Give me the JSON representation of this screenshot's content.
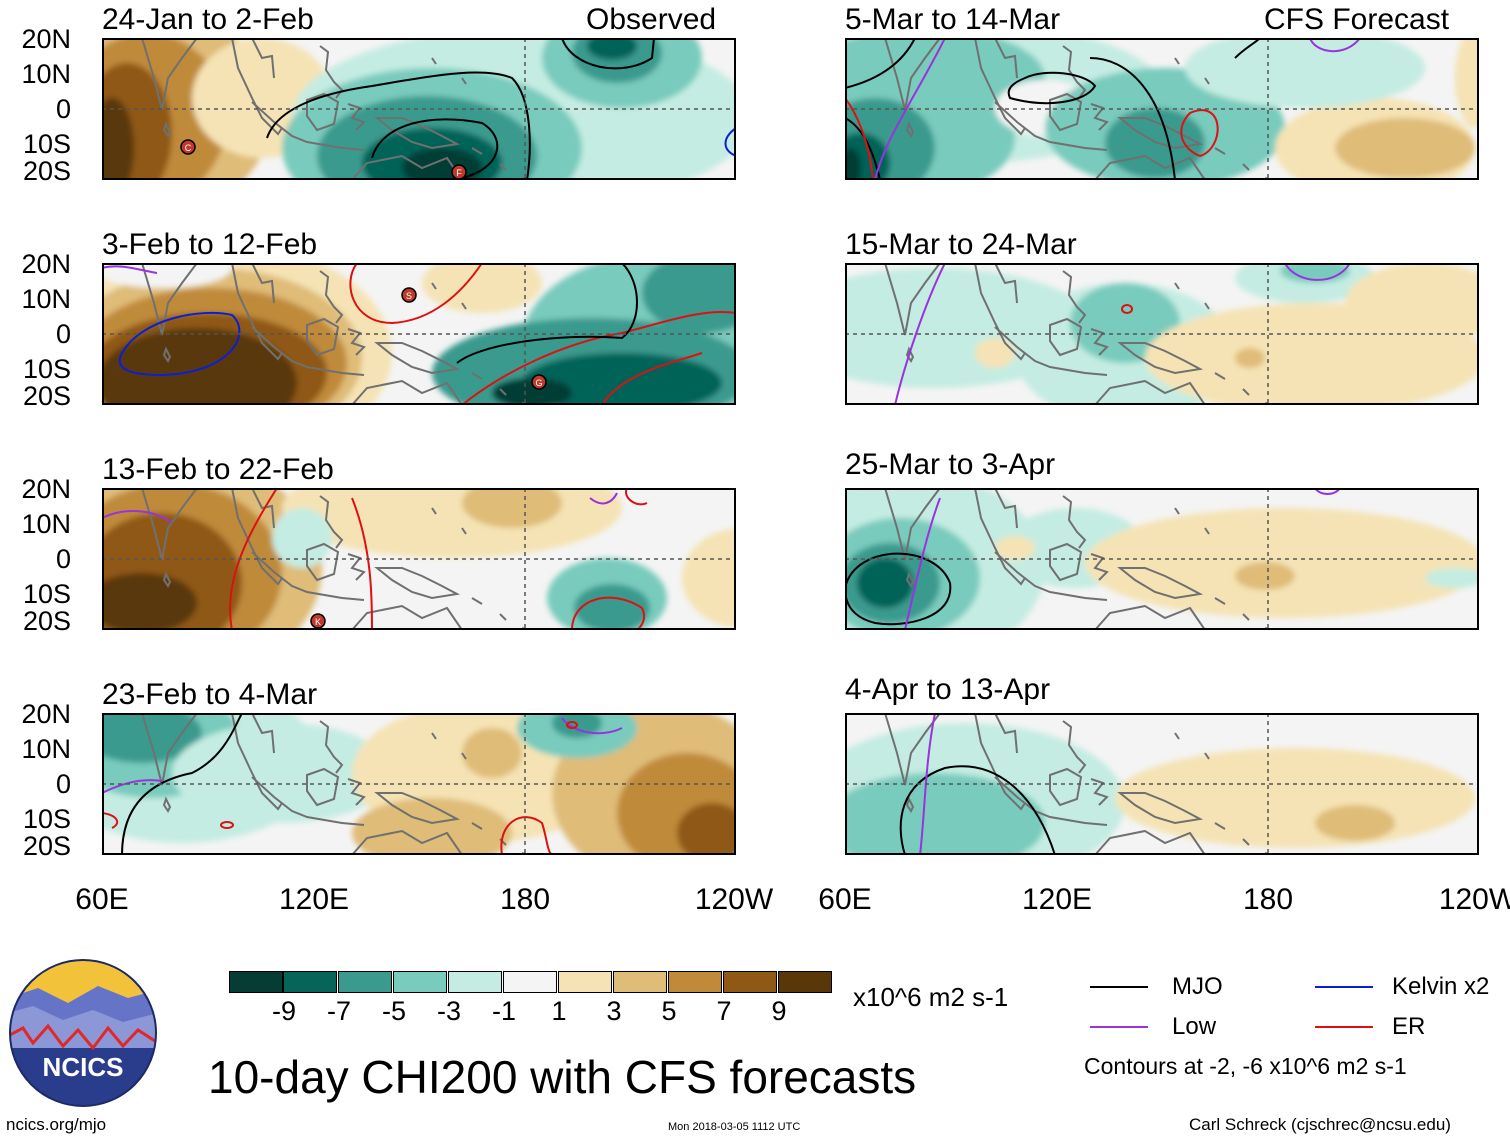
{
  "colors": {
    "bins": [
      "#053d35",
      "#066458",
      "#3a9a8e",
      "#79cbbd",
      "#c4ece2",
      "#f4f4f4",
      "#f5e3b5",
      "#dfbc78",
      "#c08a3a",
      "#8f5814",
      "#5a3708"
    ],
    "mjo": "#000000",
    "low": "#9933dd",
    "kelvin": "#0a1ed8",
    "er": "#dd1111",
    "logo_blue": "#2a3c8c",
    "logo_sun": "#f2c33a"
  },
  "left_column": {
    "header_label": "Observed",
    "panels": [
      {
        "title": "24-Jan to 2-Feb"
      },
      {
        "title": "3-Feb to 12-Feb"
      },
      {
        "title": "13-Feb to 22-Feb"
      },
      {
        "title": "23-Feb to 4-Mar"
      }
    ]
  },
  "right_column": {
    "header_label": "CFS Forecast",
    "panels": [
      {
        "title": "5-Mar to 14-Mar"
      },
      {
        "title": "15-Mar to 24-Mar"
      },
      {
        "title": "25-Mar to 3-Apr"
      },
      {
        "title": "4-Apr to 13-Apr"
      }
    ]
  },
  "lat_labels": [
    "20N",
    "10N",
    "0",
    "10S",
    "20S"
  ],
  "lon_labels": [
    "60E",
    "120E",
    "180",
    "120W"
  ],
  "colorbar": {
    "labels": [
      "-9",
      "-7",
      "-5",
      "-3",
      "-1",
      "1",
      "3",
      "5",
      "7",
      "9"
    ],
    "units": "x10^6 m2 s-1"
  },
  "legend": {
    "mjo": "MJO",
    "low": "Low",
    "kelvin": "Kelvin x2",
    "er": "ER",
    "contours_note": "Contours at -2, -6 x10^6 m2 s-1"
  },
  "main_title": "10-day CHI200 with CFS forecasts",
  "logo_text": "NCICS",
  "website": "ncics.org/mjo",
  "timestamp": "Mon 2018-03-05 1112 UTC",
  "credit": "Carl Schreck (cjschrec@ncsu.edu)",
  "storm_labels": [
    "C",
    "F",
    "S",
    "G",
    "K"
  ]
}
